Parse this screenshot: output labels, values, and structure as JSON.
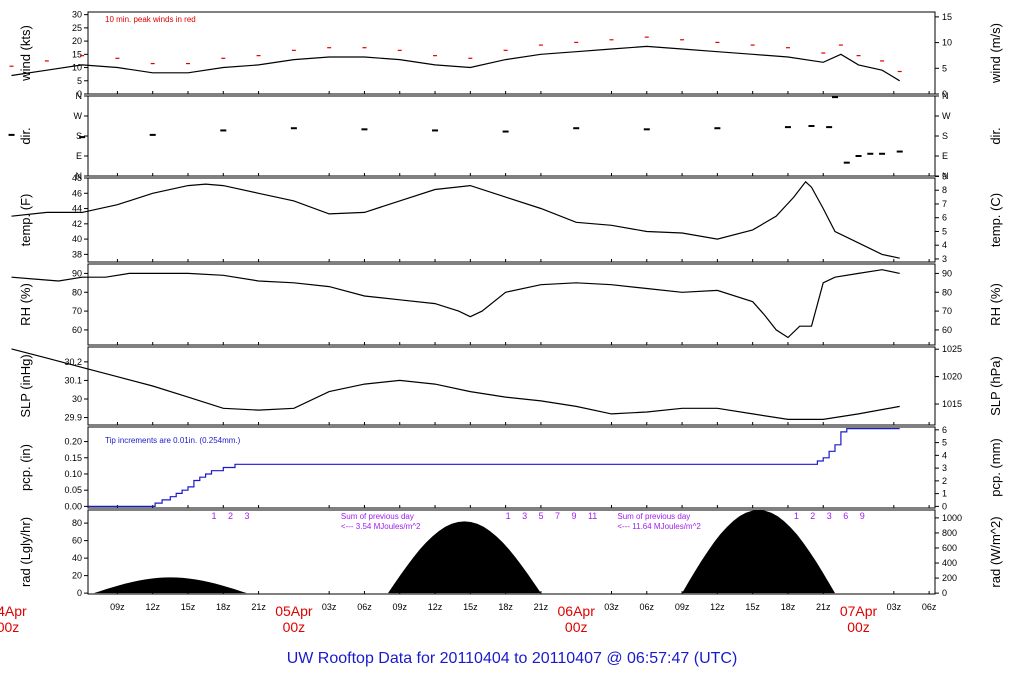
{
  "title": "UW Rooftop Data for 20110404  to  20110407 @ 06:57:47  (UTC)",
  "colors": {
    "black": "#000000",
    "red": "#e00000",
    "blue": "#1a1acc",
    "purple": "#a020f0"
  },
  "chart_data": [
    {
      "id": "wind",
      "type": "line",
      "ylabel_left": "wind (kts)",
      "ylabel_right": "wind (m/s)",
      "yticks_left": [
        0,
        5,
        10,
        15,
        20,
        25,
        30
      ],
      "yticks_right": [
        0,
        5,
        10,
        15
      ],
      "ylim": [
        0,
        31
      ],
      "right_ratio": 1.94384,
      "annotation": "10 min. peak winds in red",
      "series": {
        "x": [
          0,
          3,
          6,
          9,
          12,
          15,
          18,
          21,
          24,
          27,
          30,
          33,
          36,
          39,
          42,
          45,
          48,
          51,
          54,
          57,
          60,
          63,
          66,
          69,
          70.5,
          72,
          74,
          75.5
        ],
        "y": [
          7,
          9,
          11,
          10,
          8,
          8,
          10,
          11,
          13,
          14,
          14,
          13,
          11,
          10,
          13,
          15,
          16,
          17,
          18,
          17,
          16,
          15,
          14,
          12,
          15,
          11,
          9,
          5
        ]
      }
    },
    {
      "id": "dir",
      "type": "scatter",
      "ylabel_left": "dir.",
      "ylabel_right": "dir.",
      "ytick_labels": [
        "N",
        "E",
        "S",
        "W",
        "N"
      ],
      "ytick_values": [
        0,
        90,
        180,
        270,
        360
      ],
      "ylim": [
        0,
        360
      ],
      "series": {
        "x": [
          0,
          6,
          12,
          18,
          24,
          30,
          36,
          42,
          48,
          54,
          60,
          66,
          68,
          69.5,
          70,
          71,
          72,
          73,
          74,
          75.5
        ],
        "y": [
          185,
          175,
          185,
          205,
          215,
          210,
          205,
          200,
          215,
          210,
          215,
          220,
          225,
          220,
          355,
          60,
          90,
          100,
          100,
          110
        ]
      }
    },
    {
      "id": "temp",
      "type": "line",
      "ylabel_left": "temp. (F)",
      "ylabel_right": "temp. (C)",
      "yticks_left": [
        38,
        40,
        42,
        44,
        46,
        48
      ],
      "yticks_right": [
        3,
        4,
        5,
        6,
        7,
        8,
        9
      ],
      "ylim": [
        37,
        48
      ],
      "right_unit": "C",
      "series": {
        "x": [
          0,
          3,
          6,
          9,
          12,
          15,
          16.5,
          18,
          21,
          24,
          27,
          30,
          33,
          36,
          39,
          42,
          45,
          48,
          51,
          54,
          57,
          60,
          63,
          65,
          66.5,
          67.5,
          68,
          69,
          70,
          72,
          74,
          75.5
        ],
        "y": [
          43,
          43.5,
          43.5,
          44.5,
          46,
          47,
          47.2,
          47,
          46,
          45,
          43.3,
          43.5,
          45,
          46.5,
          47,
          45.5,
          44,
          42.2,
          41.8,
          41,
          40.8,
          40,
          41.2,
          43,
          45.5,
          47.5,
          46.8,
          44,
          41,
          39.5,
          38,
          37.5
        ]
      }
    },
    {
      "id": "rh",
      "type": "line",
      "ylabel_left": "RH (%)",
      "ylabel_right": "RH (%)",
      "yticks_left": [
        60,
        70,
        80,
        90
      ],
      "yticks_right": [
        60,
        70,
        80,
        90
      ],
      "ylim": [
        52,
        95
      ],
      "series": {
        "x": [
          0,
          2,
          4,
          6,
          8,
          10,
          12,
          15,
          18,
          21,
          24,
          27,
          30,
          33,
          36,
          38,
          39,
          40,
          42,
          45,
          48,
          51,
          54,
          57,
          60,
          63,
          64,
          65,
          66,
          67,
          68,
          69,
          70,
          72,
          74,
          75.5
        ],
        "y": [
          88,
          87,
          86,
          88,
          88,
          90,
          90,
          90,
          89,
          86,
          85,
          83,
          78,
          76,
          74,
          70,
          67,
          70,
          80,
          84,
          85,
          84,
          82,
          80,
          81,
          75,
          68,
          60,
          56,
          62,
          62,
          85,
          88,
          90,
          92,
          90
        ]
      }
    },
    {
      "id": "slp",
      "type": "line",
      "ylabel_left": "SLP (inHg)",
      "ylabel_right": "SLP (hPa)",
      "yticks_left": [
        29.9,
        30.0,
        30.1,
        30.2
      ],
      "yticks_right": [
        1015,
        1020,
        1025
      ],
      "ylim": [
        29.86,
        30.28
      ],
      "right_unit": "hPa",
      "series": {
        "x": [
          0,
          3,
          6,
          9,
          12,
          15,
          18,
          21,
          24,
          27,
          30,
          33,
          36,
          39,
          42,
          45,
          48,
          51,
          54,
          57,
          60,
          63,
          66,
          69,
          72,
          75.5
        ],
        "y": [
          30.27,
          30.22,
          30.17,
          30.12,
          30.07,
          30.01,
          29.95,
          29.94,
          29.95,
          30.04,
          30.08,
          30.1,
          30.08,
          30.04,
          30.01,
          29.99,
          29.96,
          29.92,
          29.93,
          29.95,
          29.95,
          29.92,
          29.89,
          29.89,
          29.92,
          29.96
        ]
      }
    },
    {
      "id": "pcp",
      "type": "step",
      "ylabel_left": "pcp. (in)",
      "ylabel_right": "pcp. (mm)",
      "yticks_left": [
        0.0,
        0.05,
        0.1,
        0.15,
        0.2
      ],
      "yticks_left_labels": [
        "0.00",
        "0.05",
        "0.10",
        "0.15",
        "0.20"
      ],
      "yticks_right": [
        0,
        1,
        2,
        3,
        4,
        5,
        6
      ],
      "ylim": [
        -0.005,
        0.245
      ],
      "right_unit": "mm",
      "annotation": "Tip increments are 0.01in. (0.254mm.)",
      "series": {
        "x": [
          0,
          11.5,
          12.2,
          12.8,
          13.5,
          14,
          14.5,
          15,
          15.5,
          16,
          16.5,
          17,
          18,
          19,
          20,
          68,
          68.5,
          69,
          69.5,
          70,
          70.5,
          71,
          75.5
        ],
        "y": [
          0,
          0,
          0.01,
          0.02,
          0.03,
          0.04,
          0.05,
          0.06,
          0.08,
          0.09,
          0.1,
          0.11,
          0.12,
          0.13,
          0.13,
          0.13,
          0.14,
          0.15,
          0.17,
          0.19,
          0.23,
          0.24,
          0.24
        ]
      }
    },
    {
      "id": "rad",
      "type": "area",
      "ylabel_left": "rad (Lgly/hr)",
      "ylabel_right": "rad (W/m^2)",
      "yticks_left": [
        0,
        20,
        40,
        60,
        80
      ],
      "yticks_right": [
        0,
        200,
        400,
        600,
        800,
        1000
      ],
      "ylim": [
        -1,
        95
      ],
      "right_unit": "wm2",
      "days": [
        {
          "start": 7,
          "end": 20,
          "peak": 18
        },
        {
          "start": 32,
          "end": 45,
          "peak": 82
        },
        {
          "start": 57,
          "end": 70,
          "peak": 95
        }
      ],
      "solar_hours_day1": [
        "1",
        "2",
        "3"
      ],
      "solar_hours_day2": [
        "1",
        "3",
        "5",
        "7",
        "9",
        "11"
      ],
      "solar_hours_day3": [
        "1",
        "2",
        "3",
        "6",
        "9"
      ],
      "day_summary_1": "Sum of previous day",
      "day_summary_1b": "<--- 3.54 MJoules/m^2",
      "day_summary_2": "Sum of previous day",
      "day_summary_2b": "<--- 11.64 MJoules/m^2"
    }
  ],
  "x_axis": {
    "tick_labels": [
      "09z",
      "12z",
      "15z",
      "18z",
      "21z",
      "03z",
      "06z",
      "09z",
      "12z",
      "15z",
      "18z",
      "21z",
      "03z",
      "06z",
      "09z",
      "12z",
      "15z",
      "18z",
      "21z",
      "03z",
      "06z"
    ],
    "tick_hours": [
      9,
      12,
      15,
      18,
      21,
      27,
      30,
      33,
      36,
      39,
      42,
      45,
      51,
      54,
      57,
      60,
      63,
      66,
      69,
      75,
      78
    ],
    "day_labels": [
      {
        "hour": 0,
        "top": "04Apr",
        "bottom": "00z"
      },
      {
        "hour": 24,
        "top": "05Apr",
        "bottom": "00z"
      },
      {
        "hour": 48,
        "top": "06Apr",
        "bottom": "00z"
      },
      {
        "hour": 72,
        "top": "07Apr",
        "bottom": "00z"
      }
    ]
  }
}
